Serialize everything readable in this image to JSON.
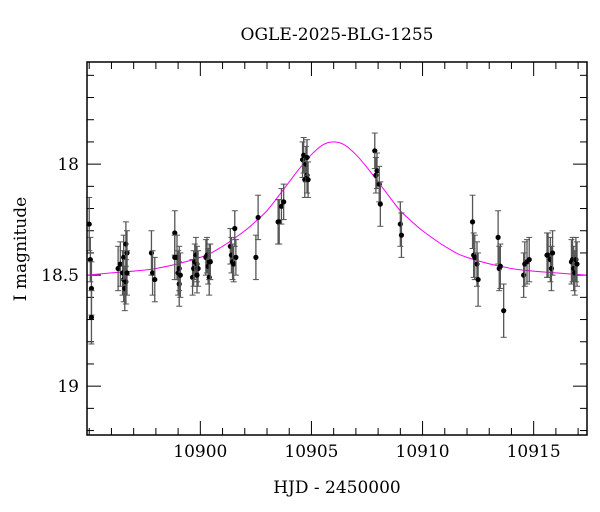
{
  "chart_data": {
    "type": "scatter",
    "title": "OGLE-2025-BLG-1255",
    "xlabel": "HJD - 2450000",
    "ylabel": "I magnitude",
    "xlim": [
      10894.9,
      10917.4
    ],
    "ylim": [
      17.54,
      19.22
    ],
    "y_inverted": true,
    "grid": false,
    "x_ticks": [
      10900,
      10905,
      10910,
      10915
    ],
    "x_tick_labels": [
      "10900",
      "10905",
      "10910",
      "10915"
    ],
    "y_ticks": [
      18,
      18.5,
      19
    ],
    "y_tick_labels": [
      "18",
      "18.5",
      "19"
    ],
    "colors": {
      "points": "#000000",
      "model": "#ff00ff",
      "errorbar": "#555555"
    },
    "series": [
      {
        "kind": "points_with_errors",
        "points": [
          [
            10895.0,
            18.27,
            0.12
          ],
          [
            10895.05,
            18.43,
            0.1
          ],
          [
            10895.1,
            18.56,
            0.12
          ],
          [
            10895.1,
            18.69,
            0.12
          ],
          [
            10896.3,
            18.47,
            0.1
          ],
          [
            10896.4,
            18.45,
            0.1
          ],
          [
            10896.5,
            18.49,
            0.1
          ],
          [
            10896.55,
            18.52,
            0.1
          ],
          [
            10896.55,
            18.42,
            0.1
          ],
          [
            10896.6,
            18.56,
            0.1
          ],
          [
            10896.65,
            18.53,
            0.1
          ],
          [
            10896.65,
            18.36,
            0.1
          ],
          [
            10896.7,
            18.4,
            0.1
          ],
          [
            10896.7,
            18.49,
            0.1
          ],
          [
            10897.8,
            18.4,
            0.1
          ],
          [
            10897.85,
            18.49,
            0.1
          ],
          [
            10897.95,
            18.52,
            0.1
          ],
          [
            10898.85,
            18.31,
            0.1
          ],
          [
            10898.85,
            18.42,
            0.1
          ],
          [
            10898.95,
            18.42,
            0.1
          ],
          [
            10899.0,
            18.49,
            0.1
          ],
          [
            10899.05,
            18.54,
            0.1
          ],
          [
            10899.05,
            18.47,
            0.1
          ],
          [
            10899.1,
            18.5,
            0.1
          ],
          [
            10899.65,
            18.51,
            0.08
          ],
          [
            10899.7,
            18.47,
            0.08
          ],
          [
            10899.75,
            18.44,
            0.08
          ],
          [
            10899.8,
            18.41,
            0.08
          ],
          [
            10899.85,
            18.45,
            0.08
          ],
          [
            10899.9,
            18.47,
            0.08
          ],
          [
            10899.85,
            18.5,
            0.08
          ],
          [
            10900.25,
            18.42,
            0.08
          ],
          [
            10900.3,
            18.41,
            0.08
          ],
          [
            10900.35,
            18.46,
            0.08
          ],
          [
            10900.4,
            18.44,
            0.08
          ],
          [
            10900.4,
            18.51,
            0.08
          ],
          [
            10900.45,
            18.44,
            0.08
          ],
          [
            10901.35,
            18.37,
            0.08
          ],
          [
            10901.4,
            18.41,
            0.08
          ],
          [
            10901.45,
            18.44,
            0.08
          ],
          [
            10901.5,
            18.45,
            0.08
          ],
          [
            10901.55,
            18.29,
            0.08
          ],
          [
            10901.6,
            18.42,
            0.08
          ],
          [
            10902.5,
            18.42,
            0.1
          ],
          [
            10902.6,
            18.24,
            0.1
          ],
          [
            10903.5,
            18.26,
            0.1
          ],
          [
            10903.55,
            18.26,
            0.1
          ],
          [
            10903.65,
            18.19,
            0.08
          ],
          [
            10903.75,
            18.17,
            0.08
          ],
          [
            10904.6,
            17.98,
            0.08
          ],
          [
            10904.65,
            17.96,
            0.08
          ],
          [
            10904.7,
            18.07,
            0.08
          ],
          [
            10904.75,
            18.0,
            0.08
          ],
          [
            10904.8,
            18.05,
            0.08
          ],
          [
            10904.85,
            18.07,
            0.08
          ],
          [
            10904.8,
            17.97,
            0.08
          ],
          [
            10907.85,
            17.94,
            0.08
          ],
          [
            10907.9,
            18.05,
            0.08
          ],
          [
            10907.95,
            18.03,
            0.08
          ],
          [
            10908.05,
            18.09,
            0.08
          ],
          [
            10908.1,
            18.18,
            0.1
          ],
          [
            10909.0,
            18.27,
            0.1
          ],
          [
            10909.05,
            18.32,
            0.1
          ],
          [
            10912.25,
            18.26,
            0.12
          ],
          [
            10912.3,
            18.41,
            0.1
          ],
          [
            10912.35,
            18.42,
            0.1
          ],
          [
            10912.45,
            18.45,
            0.1
          ],
          [
            10912.5,
            18.52,
            0.12
          ],
          [
            10913.4,
            18.33,
            0.12
          ],
          [
            10913.45,
            18.47,
            0.1
          ],
          [
            10913.5,
            18.46,
            0.1
          ],
          [
            10913.65,
            18.66,
            0.12
          ],
          [
            10914.55,
            18.5,
            0.1
          ],
          [
            10914.6,
            18.45,
            0.1
          ],
          [
            10914.7,
            18.44,
            0.1
          ],
          [
            10914.8,
            18.43,
            0.1
          ],
          [
            10915.6,
            18.41,
            0.1
          ],
          [
            10915.65,
            18.41,
            0.1
          ],
          [
            10915.75,
            18.43,
            0.1
          ],
          [
            10915.8,
            18.47,
            0.1
          ],
          [
            10915.85,
            18.4,
            0.1
          ],
          [
            10916.7,
            18.44,
            0.1
          ],
          [
            10916.75,
            18.43,
            0.1
          ],
          [
            10916.8,
            18.47,
            0.1
          ],
          [
            10916.85,
            18.49,
            0.1
          ],
          [
            10916.9,
            18.43,
            0.1
          ],
          [
            10916.95,
            18.45,
            0.1
          ]
        ]
      },
      {
        "kind": "model_curve",
        "points": [
          [
            10894.9,
            18.5
          ],
          [
            10896,
            18.49
          ],
          [
            10898,
            18.47
          ],
          [
            10900,
            18.42
          ],
          [
            10901,
            18.37
          ],
          [
            10902,
            18.3
          ],
          [
            10902.5,
            18.257
          ],
          [
            10903,
            18.21
          ],
          [
            10903.5,
            18.146
          ],
          [
            10904,
            18.08
          ],
          [
            10904.5,
            18.015
          ],
          [
            10905,
            17.957
          ],
          [
            10905.5,
            17.914
          ],
          [
            10906,
            17.9
          ],
          [
            10906.5,
            17.914
          ],
          [
            10907,
            17.957
          ],
          [
            10907.5,
            18.015
          ],
          [
            10908,
            18.08
          ],
          [
            10908.5,
            18.146
          ],
          [
            10909,
            18.21
          ],
          [
            10909.5,
            18.257
          ],
          [
            10910,
            18.3
          ],
          [
            10911,
            18.37
          ],
          [
            10912,
            18.42
          ],
          [
            10914,
            18.47
          ],
          [
            10916,
            18.49
          ],
          [
            10917.4,
            18.5
          ]
        ]
      }
    ]
  }
}
